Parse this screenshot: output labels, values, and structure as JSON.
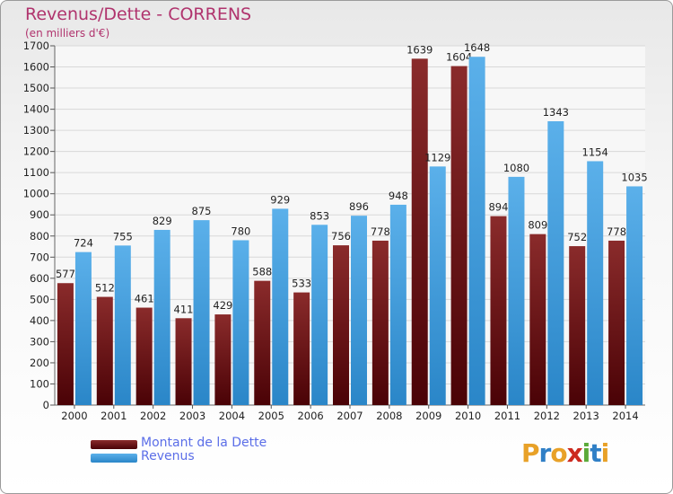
{
  "chart_data": {
    "type": "bar",
    "title": "Revenus/Dette - CORRENS",
    "subtitle": "(en milliers d'€)",
    "categories": [
      "2000",
      "2001",
      "2002",
      "2003",
      "2004",
      "2005",
      "2006",
      "2007",
      "2008",
      "2009",
      "2010",
      "2011",
      "2012",
      "2013",
      "2014"
    ],
    "series": [
      {
        "name": "Montant de la Dette",
        "color": "#6e1016",
        "values": [
          577,
          512,
          461,
          411,
          429,
          588,
          533,
          756,
          778,
          1639,
          1604,
          894,
          809,
          752,
          778
        ]
      },
      {
        "name": "Revenus",
        "color": "#3d9ad8",
        "values": [
          724,
          755,
          829,
          875,
          780,
          929,
          853,
          896,
          948,
          1129,
          1648,
          1080,
          1343,
          1154,
          1035
        ]
      }
    ],
    "ylim": [
      0,
      1700
    ],
    "yticks": [
      0,
      100,
      200,
      300,
      400,
      500,
      600,
      700,
      800,
      900,
      1000,
      1100,
      1200,
      1300,
      1400,
      1500,
      1600,
      1700
    ],
    "grid": true,
    "legend_position": "bottom-left"
  },
  "logo": {
    "letters": [
      "P",
      "r",
      "o",
      "x",
      "i",
      "t",
      "i"
    ],
    "colors": [
      "#e8a128",
      "#2f7fc6",
      "#e8a128",
      "#cc2a1f",
      "#5caa3a",
      "#2f7fc6",
      "#e8a128"
    ]
  }
}
